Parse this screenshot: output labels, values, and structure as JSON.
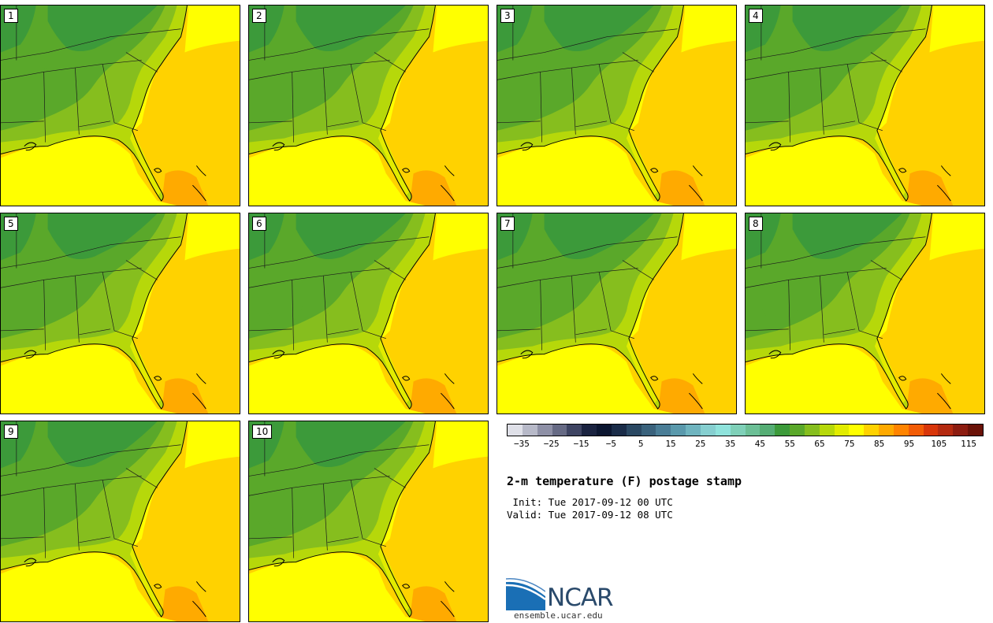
{
  "members": [
    "1",
    "2",
    "3",
    "4",
    "5",
    "6",
    "7",
    "8",
    "9",
    "10"
  ],
  "colorbar": {
    "colors": [
      "#dfe0e8",
      "#b7b9c8",
      "#8e90a6",
      "#666a84",
      "#3e4462",
      "#1a2340",
      "#0b1630",
      "#1a2c48",
      "#2a4862",
      "#3a627c",
      "#4a7d96",
      "#5a99ac",
      "#6fb4bf",
      "#86cfd0",
      "#8fe3dc",
      "#7fd0b8",
      "#6cbf96",
      "#55ad74",
      "#3c9a3a",
      "#5aa82a",
      "#86be1e",
      "#b6d80a",
      "#e2ec00",
      "#ffff00",
      "#ffd200",
      "#ffaa00",
      "#ff8400",
      "#f25c06",
      "#d8360a",
      "#b42a10",
      "#8c1c10",
      "#6a1208"
    ],
    "labels": [
      "−35",
      "−25",
      "−15",
      "−5",
      "5",
      "15",
      "25",
      "35",
      "45",
      "55",
      "65",
      "75",
      "85",
      "95",
      "105",
      "115"
    ]
  },
  "title": "2-m temperature (F) postage stamp",
  "init": " Init: Tue 2017-09-12 00 UTC",
  "valid": "Valid: Tue 2017-09-12 08 UTC",
  "logo": {
    "name": "NCAR",
    "url": "ensemble.ucar.edu"
  }
}
